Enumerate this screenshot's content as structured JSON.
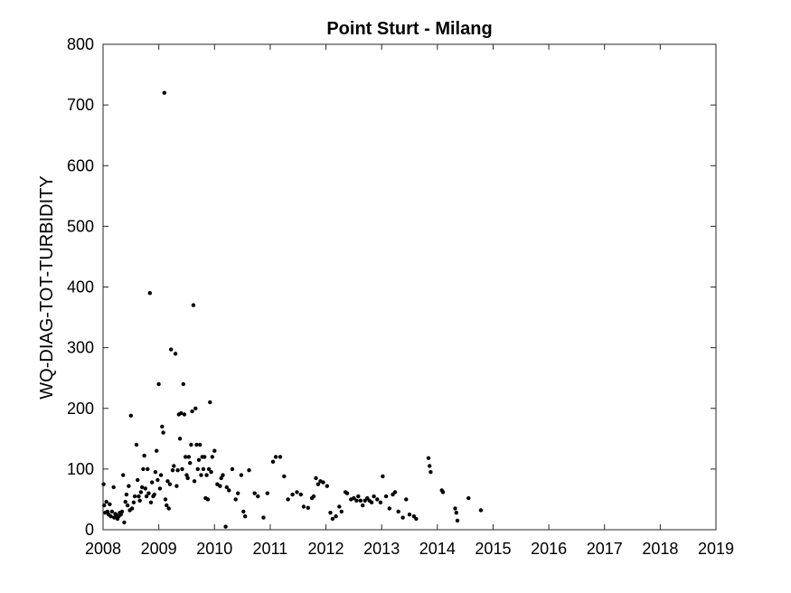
{
  "chart_data": {
    "type": "scatter",
    "title": "Point Sturt - Milang",
    "xlabel": "",
    "ylabel": "WQ-DIAG-TOT-TURBIDITY",
    "xlim": [
      2008,
      2019
    ],
    "ylim": [
      0,
      800
    ],
    "x_ticks": [
      "2008",
      "2009",
      "2010",
      "2011",
      "2012",
      "2013",
      "2014",
      "2015",
      "2016",
      "2017",
      "2018",
      "2019"
    ],
    "y_ticks": [
      "0",
      "100",
      "200",
      "300",
      "400",
      "500",
      "600",
      "700",
      "800"
    ],
    "grid": false,
    "legend": "none",
    "marker_color": "#000000",
    "series": [
      {
        "values_xy": [
          [
            2008.01,
            75
          ],
          [
            2008.02,
            40
          ],
          [
            2008.04,
            28
          ],
          [
            2008.06,
            46
          ],
          [
            2008.08,
            30
          ],
          [
            2008.1,
            25
          ],
          [
            2008.12,
            42
          ],
          [
            2008.14,
            22
          ],
          [
            2008.16,
            30
          ],
          [
            2008.19,
            70
          ],
          [
            2008.2,
            20
          ],
          [
            2008.22,
            26
          ],
          [
            2008.24,
            24
          ],
          [
            2008.26,
            18
          ],
          [
            2008.28,
            22
          ],
          [
            2008.3,
            28
          ],
          [
            2008.32,
            25
          ],
          [
            2008.34,
            30
          ],
          [
            2008.36,
            90
          ],
          [
            2008.38,
            12
          ],
          [
            2008.4,
            46
          ],
          [
            2008.42,
            58
          ],
          [
            2008.44,
            40
          ],
          [
            2008.46,
            72
          ],
          [
            2008.48,
            32
          ],
          [
            2008.5,
            188
          ],
          [
            2008.52,
            35
          ],
          [
            2008.55,
            45
          ],
          [
            2008.57,
            55
          ],
          [
            2008.6,
            140
          ],
          [
            2008.62,
            82
          ],
          [
            2008.64,
            55
          ],
          [
            2008.66,
            48
          ],
          [
            2008.68,
            62
          ],
          [
            2008.7,
            70
          ],
          [
            2008.72,
            100
          ],
          [
            2008.74,
            122
          ],
          [
            2008.76,
            68
          ],
          [
            2008.78,
            55
          ],
          [
            2008.8,
            100
          ],
          [
            2008.82,
            60
          ],
          [
            2008.84,
            390
          ],
          [
            2008.86,
            45
          ],
          [
            2008.88,
            78
          ],
          [
            2008.9,
            55
          ],
          [
            2008.92,
            58
          ],
          [
            2008.94,
            95
          ],
          [
            2008.96,
            130
          ],
          [
            2008.98,
            82
          ],
          [
            2009.0,
            240
          ],
          [
            2009.02,
            68
          ],
          [
            2009.04,
            90
          ],
          [
            2009.06,
            170
          ],
          [
            2009.08,
            160
          ],
          [
            2009.1,
            720
          ],
          [
            2009.12,
            50
          ],
          [
            2009.14,
            40
          ],
          [
            2009.16,
            80
          ],
          [
            2009.18,
            35
          ],
          [
            2009.2,
            75
          ],
          [
            2009.22,
            297
          ],
          [
            2009.25,
            98
          ],
          [
            2009.27,
            105
          ],
          [
            2009.3,
            290
          ],
          [
            2009.32,
            72
          ],
          [
            2009.34,
            98
          ],
          [
            2009.36,
            190
          ],
          [
            2009.38,
            150
          ],
          [
            2009.4,
            192
          ],
          [
            2009.42,
            100
          ],
          [
            2009.44,
            240
          ],
          [
            2009.46,
            190
          ],
          [
            2009.48,
            120
          ],
          [
            2009.5,
            90
          ],
          [
            2009.52,
            85
          ],
          [
            2009.54,
            120
          ],
          [
            2009.56,
            110
          ],
          [
            2009.58,
            140
          ],
          [
            2009.6,
            195
          ],
          [
            2009.62,
            370
          ],
          [
            2009.64,
            80
          ],
          [
            2009.66,
            200
          ],
          [
            2009.68,
            140
          ],
          [
            2009.7,
            100
          ],
          [
            2009.72,
            115
          ],
          [
            2009.74,
            140
          ],
          [
            2009.76,
            90
          ],
          [
            2009.78,
            120
          ],
          [
            2009.8,
            100
          ],
          [
            2009.82,
            120
          ],
          [
            2009.84,
            52
          ],
          [
            2009.86,
            90
          ],
          [
            2009.88,
            50
          ],
          [
            2009.9,
            100
          ],
          [
            2009.92,
            210
          ],
          [
            2009.94,
            95
          ],
          [
            2009.96,
            120
          ],
          [
            2010.0,
            130
          ],
          [
            2010.05,
            75
          ],
          [
            2010.1,
            72
          ],
          [
            2010.12,
            85
          ],
          [
            2010.15,
            90
          ],
          [
            2010.2,
            5
          ],
          [
            2010.22,
            70
          ],
          [
            2010.26,
            65
          ],
          [
            2010.32,
            100
          ],
          [
            2010.38,
            50
          ],
          [
            2010.42,
            60
          ],
          [
            2010.48,
            90
          ],
          [
            2010.52,
            30
          ],
          [
            2010.55,
            22
          ],
          [
            2010.62,
            98
          ],
          [
            2010.72,
            60
          ],
          [
            2010.78,
            55
          ],
          [
            2010.88,
            20
          ],
          [
            2010.95,
            60
          ],
          [
            2011.05,
            112
          ],
          [
            2011.1,
            120
          ],
          [
            2011.18,
            120
          ],
          [
            2011.25,
            88
          ],
          [
            2011.32,
            50
          ],
          [
            2011.4,
            58
          ],
          [
            2011.48,
            62
          ],
          [
            2011.55,
            58
          ],
          [
            2011.6,
            38
          ],
          [
            2011.68,
            36
          ],
          [
            2011.75,
            52
          ],
          [
            2011.78,
            55
          ],
          [
            2011.82,
            85
          ],
          [
            2011.86,
            75
          ],
          [
            2011.9,
            80
          ],
          [
            2011.95,
            78
          ],
          [
            2012.02,
            72
          ],
          [
            2012.08,
            28
          ],
          [
            2012.12,
            18
          ],
          [
            2012.18,
            22
          ],
          [
            2012.24,
            38
          ],
          [
            2012.28,
            30
          ],
          [
            2012.35,
            62
          ],
          [
            2012.38,
            60
          ],
          [
            2012.45,
            50
          ],
          [
            2012.5,
            52
          ],
          [
            2012.55,
            48
          ],
          [
            2012.58,
            55
          ],
          [
            2012.62,
            48
          ],
          [
            2012.66,
            40
          ],
          [
            2012.7,
            48
          ],
          [
            2012.74,
            52
          ],
          [
            2012.78,
            48
          ],
          [
            2012.82,
            45
          ],
          [
            2012.86,
            55
          ],
          [
            2012.92,
            50
          ],
          [
            2012.98,
            45
          ],
          [
            2013.02,
            88
          ],
          [
            2013.08,
            55
          ],
          [
            2013.14,
            35
          ],
          [
            2013.2,
            58
          ],
          [
            2013.24,
            62
          ],
          [
            2013.3,
            30
          ],
          [
            2013.38,
            20
          ],
          [
            2013.44,
            50
          ],
          [
            2013.5,
            25
          ],
          [
            2013.58,
            22
          ],
          [
            2013.62,
            18
          ],
          [
            2013.84,
            118
          ],
          [
            2013.86,
            105
          ],
          [
            2013.88,
            95
          ],
          [
            2014.08,
            65
          ],
          [
            2014.1,
            62
          ],
          [
            2014.32,
            35
          ],
          [
            2014.34,
            28
          ],
          [
            2014.36,
            15
          ],
          [
            2014.56,
            52
          ],
          [
            2014.78,
            32
          ]
        ]
      }
    ]
  }
}
